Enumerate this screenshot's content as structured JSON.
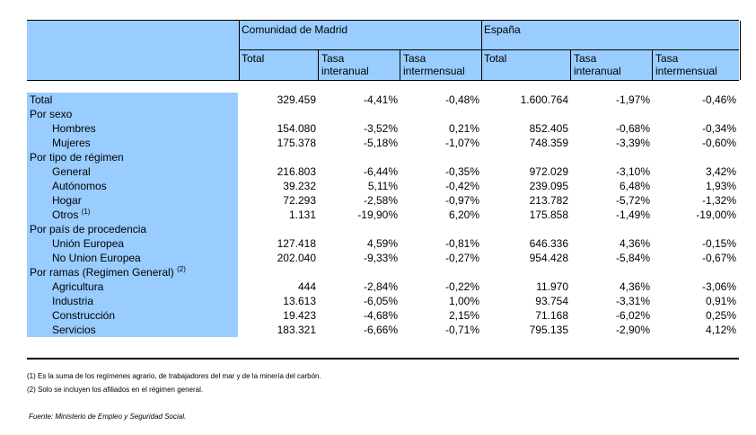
{
  "header": {
    "group_madrid": "Comunidad de Madrid",
    "group_espana": "España",
    "col_total": "Total",
    "col_tasa_inter1": "Tasa",
    "col_tasa_inter2": "interanual",
    "col_tasa_mens1": "Tasa",
    "col_tasa_mens2": "intermensual"
  },
  "rows": [
    {
      "label": "Total",
      "indent": false,
      "values": [
        "329.459",
        "-4,41%",
        "-0,48%",
        "1.600.764",
        "-1,97%",
        "-0,46%"
      ]
    },
    {
      "label": "Por sexo",
      "indent": false,
      "values": [
        "",
        "",
        "",
        "",
        "",
        ""
      ]
    },
    {
      "label": "Hombres",
      "indent": true,
      "values": [
        "154.080",
        "-3,52%",
        "0,21%",
        "852.405",
        "-0,68%",
        "-0,34%"
      ]
    },
    {
      "label": "Mujeres",
      "indent": true,
      "values": [
        "175.378",
        "-5,18%",
        "-1,07%",
        "748.359",
        "-3,39%",
        "-0,60%"
      ]
    },
    {
      "label": "Por tipo de régimen",
      "indent": false,
      "values": [
        "",
        "",
        "",
        "",
        "",
        ""
      ]
    },
    {
      "label": "General",
      "indent": true,
      "values": [
        "216.803",
        "-6,44%",
        "-0,35%",
        "972.029",
        "-3,10%",
        "3,42%"
      ]
    },
    {
      "label": "Autónomos",
      "indent": true,
      "values": [
        "39.232",
        "5,11%",
        "-0,42%",
        "239.095",
        "6,48%",
        "1,93%"
      ]
    },
    {
      "label": "Hogar",
      "indent": true,
      "values": [
        "72.293",
        "-2,58%",
        "-0,97%",
        "213.782",
        "-5,72%",
        "-1,32%"
      ]
    },
    {
      "label": "Otros",
      "sup": "(1)",
      "indent": true,
      "values": [
        "1.131",
        "-19,90%",
        "6,20%",
        "175.858",
        "-1,49%",
        "-19,00%"
      ]
    },
    {
      "label": "Por país de procedencia",
      "indent": false,
      "values": [
        "",
        "",
        "",
        "",
        "",
        ""
      ]
    },
    {
      "label": "Unión Europea",
      "indent": true,
      "values": [
        "127.418",
        "4,59%",
        "-0,81%",
        "646.336",
        "4,36%",
        "-0,15%"
      ]
    },
    {
      "label": "No Union Europea",
      "indent": true,
      "values": [
        "202.040",
        "-9,33%",
        "-0,27%",
        "954.428",
        "-5,84%",
        "-0,67%"
      ]
    },
    {
      "label": "Por ramas (Regimen General)",
      "sup": "(2)",
      "indent": false,
      "values": [
        "",
        "",
        "",
        "",
        "",
        ""
      ]
    },
    {
      "label": "Agricultura",
      "indent": true,
      "values": [
        "444",
        "-2,84%",
        "-0,22%",
        "11.970",
        "4,36%",
        "-3,06%"
      ]
    },
    {
      "label": "Industria",
      "indent": true,
      "values": [
        "13.613",
        "-6,05%",
        "1,00%",
        "93.754",
        "-3,31%",
        "0,91%"
      ]
    },
    {
      "label": "Construcción",
      "indent": true,
      "values": [
        "19.423",
        "-4,68%",
        "2,15%",
        "71.168",
        "-6,02%",
        "0,25%"
      ]
    },
    {
      "label": "Servicios",
      "indent": true,
      "values": [
        "183.321",
        "-6,66%",
        "-0,71%",
        "795.135",
        "-2,90%",
        "4,12%"
      ]
    }
  ],
  "notes": {
    "note1": "(1) Es la suma de los regímenes  agrario, de trabajadores del mar y de la minería del carbón.",
    "note2": "(2) Solo se incluyen los afiliados en el régimen general."
  },
  "source": "Fuente: Ministerio de Empleo y Seguridad Social."
}
